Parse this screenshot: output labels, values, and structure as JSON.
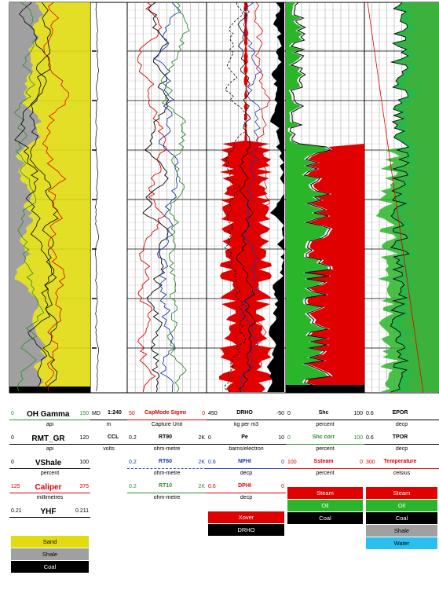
{
  "chart_data": {
    "type": "well-log",
    "tracks": [
      {
        "headers": [
          {
            "min": "0",
            "name": "OH Gamma Ray",
            "max": "150",
            "unit": "api",
            "color": "#2e8b2e"
          },
          {
            "min": "0",
            "name": "RMT_GR",
            "max": "120",
            "unit": "api",
            "color": "#000000"
          },
          {
            "min": "0",
            "name": "VShale",
            "max": "100",
            "unit": "percent",
            "color": "#000000"
          },
          {
            "min": "125",
            "name": "Caliper",
            "max": "375",
            "unit": "millimetres",
            "color": "#e00000"
          },
          {
            "min": "0.21",
            "name": "YHF",
            "max": "0.211",
            "unit": "",
            "color": "#000000"
          }
        ],
        "fills": [
          {
            "label": "Sand",
            "color": "#e0dc10"
          },
          {
            "label": "Shale",
            "color": "#a0a0a0"
          },
          {
            "label": "Coal",
            "color": "#000000"
          }
        ]
      },
      {
        "headers": [
          {
            "min": "MD",
            "name": "1:240",
            "max": "",
            "unit": "m",
            "color": "#000000"
          },
          {
            "min": "",
            "name": "CCL",
            "max": "",
            "unit": "volts",
            "color": "#000000"
          }
        ]
      },
      {
        "headers": [
          {
            "min": "50",
            "name": "CapMode Sigma Intrinsic",
            "max": "0",
            "unit": "Capture Unit",
            "color": "#e00000"
          },
          {
            "min": "0.2",
            "name": "RT90",
            "max": "2K",
            "unit": "ohm-metre",
            "color": "#000000"
          },
          {
            "min": "0.2",
            "name": "RT60",
            "max": "2K",
            "unit": "ohm-metre",
            "color": "#1a3aa8"
          },
          {
            "min": "0.2",
            "name": "RT10",
            "max": "2K",
            "unit": "ohm-metre",
            "color": "#2e8b2e"
          }
        ]
      },
      {
        "headers": [
          {
            "min": "450",
            "name": "DRHO",
            "max": "-50",
            "unit": "kg per m3",
            "color": "#000000"
          },
          {
            "min": "0",
            "name": "Pe",
            "max": "10",
            "unit": "barns/electron",
            "color": "#000000"
          },
          {
            "min": "0.6",
            "name": "NPHI",
            "max": "0",
            "unit": "decp",
            "color": "#1a3aa8"
          },
          {
            "min": "0.6",
            "name": "DPHI",
            "max": "0",
            "unit": "decp",
            "color": "#e00000"
          }
        ],
        "fills": [
          {
            "label": "Xover",
            "color": "#e00000"
          },
          {
            "label": "DRHO",
            "color": "#000000"
          }
        ]
      },
      {
        "headers": [
          {
            "min": "0",
            "name": "Shc",
            "max": "100",
            "unit": "percent",
            "color": "#000000"
          },
          {
            "min": "0",
            "name": "Shc corr",
            "max": "100",
            "unit": "percent",
            "color": "#2e8b2e"
          },
          {
            "min": "100",
            "name": "Ssteam",
            "max": "0",
            "unit": "percent",
            "color": "#e00000"
          }
        ],
        "fills": [
          {
            "label": "Steam",
            "color": "#e00000"
          },
          {
            "label": "Oil",
            "color": "#2ab52a"
          },
          {
            "label": "Coal",
            "color": "#000000"
          }
        ]
      },
      {
        "headers": [
          {
            "min": "0.6",
            "name": "EPOR",
            "max": "",
            "unit": "decp",
            "color": "#000000"
          },
          {
            "min": "0.6",
            "name": "TPOR",
            "max": "",
            "unit": "decp",
            "color": "#000000"
          },
          {
            "min": "300",
            "name": "Temperature",
            "max": "",
            "unit": "celsius",
            "color": "#e00000"
          }
        ],
        "fills": [
          {
            "label": "Steam",
            "color": "#e00000"
          },
          {
            "label": "Oil",
            "color": "#2ab52a"
          },
          {
            "label": "Coal",
            "color": "#000000"
          },
          {
            "label": "Shale",
            "color": "#a0a0a0"
          },
          {
            "label": "Water",
            "color": "#29c0f0"
          }
        ]
      }
    ],
    "grid": true
  }
}
